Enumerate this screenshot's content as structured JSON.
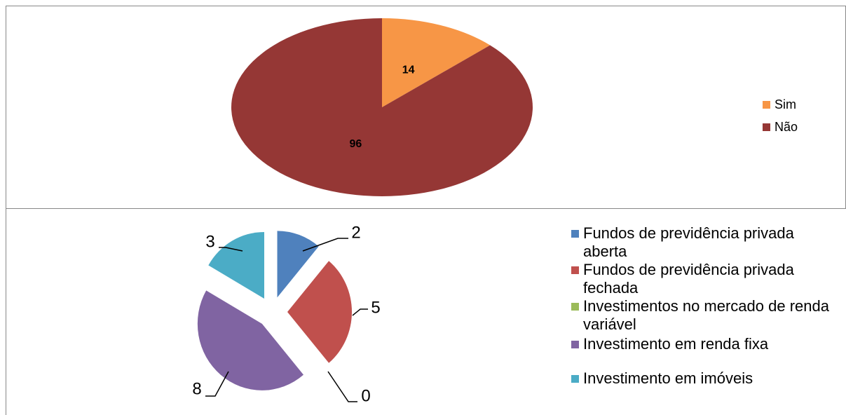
{
  "chart_data": [
    {
      "type": "pie",
      "categories": [
        "Sim",
        "Não"
      ],
      "values": [
        14,
        96
      ],
      "colors": [
        "#f79646",
        "#953735"
      ],
      "legend": "right",
      "exploded": false
    },
    {
      "type": "pie",
      "categories": [
        "Fundos de previdência privada aberta",
        "Fundos de previdência privada fechada",
        "Investimentos no mercado de renda variável",
        "Investimento em renda fixa",
        "Investimento em imóveis"
      ],
      "values": [
        2,
        5,
        0,
        8,
        3
      ],
      "colors": [
        "#4f81bd",
        "#c0504d",
        "#9bbb59",
        "#8064a2",
        "#4bacc6"
      ],
      "legend": "right",
      "exploded": true
    }
  ]
}
